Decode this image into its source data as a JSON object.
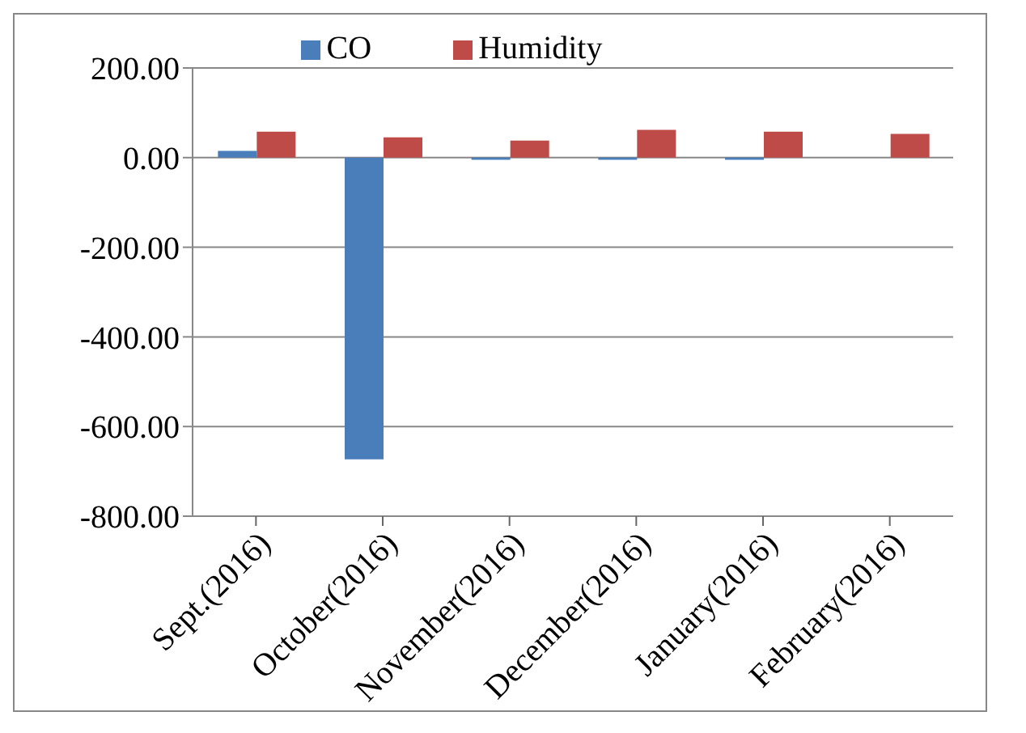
{
  "chart_data": {
    "type": "bar",
    "categories": [
      "Sept.(2016)",
      "October(2016)",
      "November(2016)",
      "December(2016)",
      "January(2016)",
      "February(2016)"
    ],
    "series": [
      {
        "name": "CO",
        "color": "#4a7ebb",
        "values": [
          15,
          -673,
          -5,
          -5,
          -5,
          0
        ]
      },
      {
        "name": "Humidity",
        "color": "#be4b48",
        "values": [
          58,
          45,
          38,
          62,
          58,
          53
        ]
      }
    ],
    "ylim": [
      -800,
      200
    ],
    "yticks": [
      {
        "value": 200,
        "label": "200.00"
      },
      {
        "value": 0,
        "label": "0.00"
      },
      {
        "value": -200,
        "label": "-200.00"
      },
      {
        "value": -400,
        "label": "-400.00"
      },
      {
        "value": -600,
        "label": "-600.00"
      },
      {
        "value": -800,
        "label": "-800.00"
      }
    ],
    "grid": "y",
    "legend": "top"
  }
}
